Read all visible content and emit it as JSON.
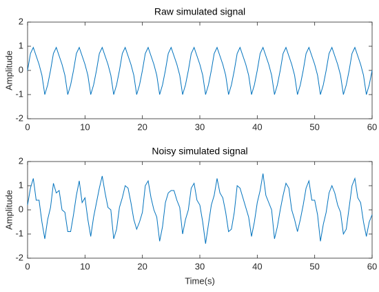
{
  "chart_data": [
    {
      "type": "line",
      "title": "Raw simulated signal",
      "ylabel": "Amplitude",
      "color": "#0072BD",
      "xlim": [
        0,
        60
      ],
      "ylim": [
        -2,
        2
      ],
      "xticks": [
        0,
        10,
        20,
        30,
        40,
        50,
        60
      ],
      "yticks": [
        -2,
        -1,
        0,
        1,
        2
      ],
      "x": [
        0,
        0.5,
        1,
        1.5,
        2,
        2.5,
        3,
        3.5,
        4,
        4.5,
        5,
        5.5,
        6,
        6.5,
        7,
        7.5,
        8,
        8.5,
        9,
        9.5,
        10,
        10.5,
        11,
        11.5,
        12,
        12.5,
        13,
        13.5,
        14,
        14.5,
        15,
        15.5,
        16,
        16.5,
        17,
        17.5,
        18,
        18.5,
        19,
        19.5,
        20,
        20.5,
        21,
        21.5,
        22,
        22.5,
        23,
        23.5,
        24,
        24.5,
        25,
        25.5,
        26,
        26.5,
        27,
        27.5,
        28,
        28.5,
        29,
        29.5,
        30,
        30.5,
        31,
        31.5,
        32,
        32.5,
        33,
        33.5,
        34,
        34.5,
        35,
        35.5,
        36,
        36.5,
        37,
        37.5,
        38,
        38.5,
        39,
        39.5,
        40,
        40.5,
        41,
        41.5,
        42,
        42.5,
        43,
        43.5,
        44,
        44.5,
        45,
        45.5,
        46,
        46.5,
        47,
        47.5,
        48,
        48.5,
        49,
        49.5,
        50,
        50.5,
        51,
        51.5,
        52,
        52.5,
        53,
        53.5,
        54,
        54.5,
        55,
        55.5,
        56,
        56.5,
        57,
        57.5,
        58,
        58.5,
        59,
        59.5,
        60
      ],
      "values": [
        0,
        0.7,
        0.95,
        0.6,
        0.25,
        -0.2,
        -1,
        -0.6,
        0,
        0.7,
        0.95,
        0.6,
        0.25,
        -0.2,
        -1,
        -0.6,
        0,
        0.7,
        0.95,
        0.6,
        0.25,
        -0.2,
        -1,
        -0.6,
        0,
        0.7,
        0.95,
        0.6,
        0.25,
        -0.2,
        -1,
        -0.6,
        0,
        0.7,
        0.95,
        0.6,
        0.25,
        -0.2,
        -1,
        -0.6,
        0,
        0.7,
        0.95,
        0.6,
        0.25,
        -0.2,
        -1,
        -0.6,
        0,
        0.7,
        0.95,
        0.6,
        0.25,
        -0.2,
        -1,
        -0.6,
        0,
        0.7,
        0.95,
        0.6,
        0.25,
        -0.2,
        -1,
        -0.6,
        0,
        0.7,
        0.95,
        0.6,
        0.25,
        -0.2,
        -1,
        -0.6,
        0,
        0.7,
        0.95,
        0.6,
        0.25,
        -0.2,
        -1,
        -0.6,
        0,
        0.7,
        0.95,
        0.6,
        0.25,
        -0.2,
        -1,
        -0.6,
        0,
        0.7,
        0.95,
        0.6,
        0.25,
        -0.2,
        -1,
        -0.6,
        0,
        0.7,
        0.95,
        0.6,
        0.25,
        -0.2,
        -1,
        -0.6,
        0,
        0.7,
        0.95,
        0.6,
        0.25,
        -0.2,
        -1,
        -0.6,
        0,
        0.7,
        0.95,
        0.6,
        0.25,
        -0.2,
        -1,
        -0.6,
        0
      ]
    },
    {
      "type": "line",
      "title": "Noisy simulated signal",
      "ylabel": "Amplitude",
      "xlabel": "Time(s)",
      "color": "#0072BD",
      "xlim": [
        0,
        60
      ],
      "ylim": [
        -2,
        2
      ],
      "xticks": [
        0,
        10,
        20,
        30,
        40,
        50,
        60
      ],
      "yticks": [
        -2,
        -1,
        0,
        1,
        2
      ],
      "x": [
        0,
        0.5,
        1,
        1.5,
        2,
        2.5,
        3,
        3.5,
        4,
        4.5,
        5,
        5.5,
        6,
        6.5,
        7,
        7.5,
        8,
        8.5,
        9,
        9.5,
        10,
        10.5,
        11,
        11.5,
        12,
        12.5,
        13,
        13.5,
        14,
        14.5,
        15,
        15.5,
        16,
        16.5,
        17,
        17.5,
        18,
        18.5,
        19,
        19.5,
        20,
        20.5,
        21,
        21.5,
        22,
        22.5,
        23,
        23.5,
        24,
        24.5,
        25,
        25.5,
        26,
        26.5,
        27,
        27.5,
        28,
        28.5,
        29,
        29.5,
        30,
        30.5,
        31,
        31.5,
        32,
        32.5,
        33,
        33.5,
        34,
        34.5,
        35,
        35.5,
        36,
        36.5,
        37,
        37.5,
        38,
        38.5,
        39,
        39.5,
        40,
        40.5,
        41,
        41.5,
        42,
        42.5,
        43,
        43.5,
        44,
        44.5,
        45,
        45.5,
        46,
        46.5,
        47,
        47.5,
        48,
        48.5,
        49,
        49.5,
        50,
        50.5,
        51,
        51.5,
        52,
        52.5,
        53,
        53.5,
        54,
        54.5,
        55,
        55.5,
        56,
        56.5,
        57,
        57.5,
        58,
        58.5,
        59,
        59.5,
        60
      ],
      "values": [
        0.2,
        0.9,
        1.3,
        0.4,
        0.4,
        -0.5,
        -1.2,
        -0.4,
        0.1,
        1.1,
        0.7,
        0.8,
        0,
        -0.1,
        -0.9,
        -0.9,
        -0.2,
        0.6,
        1.2,
        0.3,
        0.5,
        -0.4,
        -1.1,
        -0.3,
        0.3,
        0.9,
        1.4,
        0.7,
        0.1,
        0,
        -1.2,
        -0.8,
        0.1,
        0.5,
        1,
        0.9,
        0.3,
        -0.4,
        -0.8,
        -0.5,
        -0.1,
        1,
        1.2,
        0.5,
        0,
        -0.3,
        -1.3,
        -0.7,
        0.3,
        0.7,
        0.8,
        0.8,
        0.4,
        0.1,
        -1,
        -0.4,
        0,
        0.9,
        1.1,
        0.4,
        0.2,
        -0.5,
        -1.4,
        -0.6,
        0.2,
        0.6,
        1.3,
        0.7,
        0.5,
        -0.1,
        -0.9,
        -0.8,
        -0.1,
        1,
        0.9,
        0.5,
        0.1,
        -0.3,
        -1.1,
        -0.5,
        0.3,
        0.8,
        1.5,
        0.6,
        0.3,
        0,
        -1.2,
        -0.7,
        0,
        0.6,
        1.1,
        0.9,
        0,
        -0.4,
        -0.9,
        -0.4,
        0.2,
        0.9,
        1.2,
        0.4,
        0.4,
        -0.2,
        -1.3,
        -0.6,
        -0.1,
        0.7,
        1,
        0.7,
        0.2,
        -0.1,
        -1,
        -0.8,
        0.1,
        1,
        1.3,
        0.5,
        0.3,
        -0.5,
        -1.1,
        -0.5,
        -0.2
      ]
    }
  ]
}
